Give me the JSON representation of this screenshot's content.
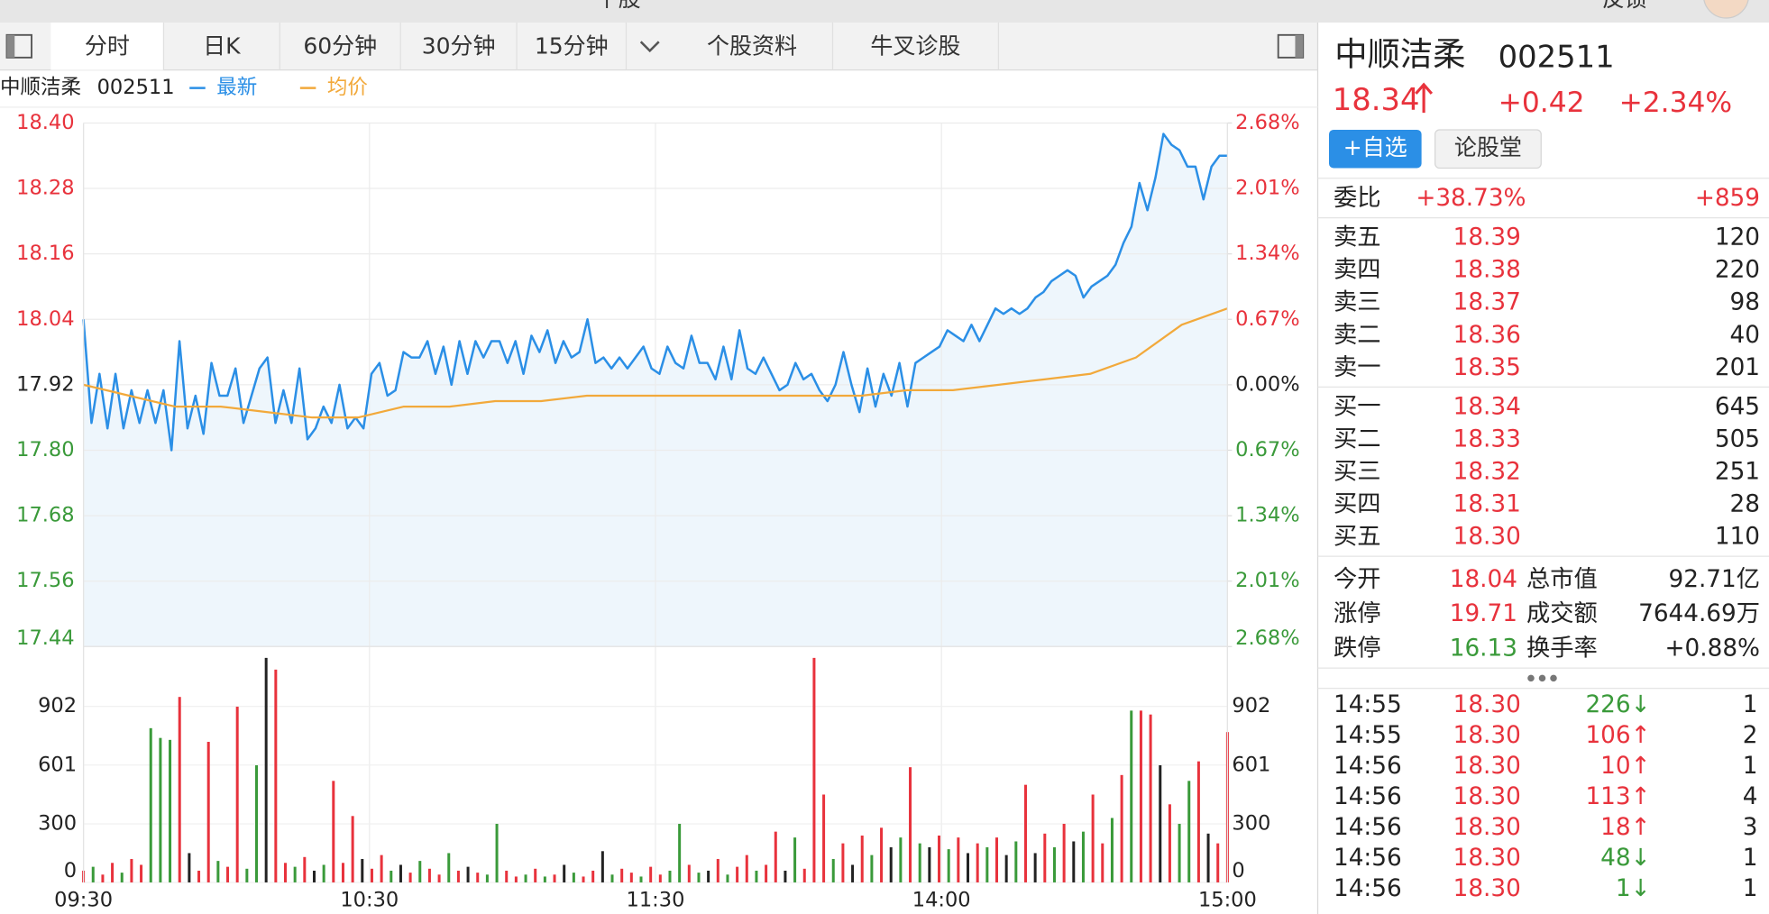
{
  "header": {
    "title": "个股",
    "feedback": "反馈"
  },
  "tabs": [
    "分时",
    "日K",
    "60分钟",
    "30分钟",
    "15分钟",
    "个股资料",
    "牛叉诊股"
  ],
  "chart_data": [
    {
      "type": "line",
      "title": "中顺洁柔",
      "subtitle": "002511",
      "up_color": "#e8323c",
      "down_color": "#3a9a3a",
      "neutral_color": "#222222",
      "grid": true,
      "ylim": [
        17.44,
        18.4
      ],
      "yticks": [
        {
          "value": 18.4,
          "label": "18.40"
        },
        18.28,
        18.16,
        18.04,
        17.92,
        {
          "value": 17.8,
          "label": "17.80"
        },
        17.68,
        17.56,
        17.44
      ],
      "y2lim": [
        -2.68,
        2.68
      ],
      "y2ticks": [
        {
          "value": 2.68,
          "label": "2.68%"
        },
        {
          "value": 2.01,
          "label": "2.01%"
        },
        {
          "value": 1.34,
          "label": "1.34%"
        },
        {
          "value": 0.67,
          "label": "0.67%"
        },
        {
          "value": 0,
          "label": "0.00%"
        },
        {
          "value": -0.67,
          "label": "0.67%"
        },
        {
          "value": -1.34,
          "label": "1.34%"
        },
        {
          "value": -2.01,
          "label": "2.01%"
        },
        {
          "value": -2.68,
          "label": "2.68%"
        }
      ],
      "series": [
        {
          "name": "最新",
          "color": "#2b8fe6",
          "fill": "#eef6fc",
          "values": [
            18.04,
            17.85,
            17.94,
            17.84,
            17.94,
            17.84,
            17.91,
            17.85,
            17.91,
            17.85,
            17.91,
            17.8,
            18.0,
            17.84,
            17.9,
            17.83,
            17.96,
            17.9,
            17.9,
            17.95,
            17.85,
            17.9,
            17.95,
            17.97,
            17.85,
            17.91,
            17.85,
            17.95,
            17.82,
            17.84,
            17.88,
            17.85,
            17.92,
            17.84,
            17.86,
            17.84,
            17.94,
            17.96,
            17.9,
            17.91,
            17.98,
            17.97,
            17.97,
            18.0,
            17.94,
            17.99,
            17.92,
            18.0,
            17.94,
            18.0,
            17.97,
            18.0,
            18.0,
            17.96,
            18.0,
            17.94,
            18.01,
            17.98,
            18.02,
            17.96,
            18.0,
            17.97,
            17.98,
            18.04,
            17.96,
            17.97,
            17.95,
            17.97,
            17.95,
            17.97,
            17.99,
            17.95,
            17.94,
            17.99,
            17.96,
            17.95,
            18.01,
            17.96,
            17.96,
            17.93,
            17.99,
            17.93,
            18.02,
            17.95,
            17.94,
            17.97,
            17.94,
            17.91,
            17.92,
            17.96,
            17.93,
            17.94,
            17.91,
            17.89,
            17.92,
            17.98,
            17.92,
            17.87,
            17.95,
            17.88,
            17.94,
            17.9,
            17.96,
            17.88,
            17.96,
            17.97,
            17.98,
            17.99,
            18.02,
            18.01,
            18.0,
            18.03,
            18.0,
            18.03,
            18.06,
            18.05,
            18.06,
            18.05,
            18.06,
            18.08,
            18.09,
            18.11,
            18.12,
            18.13,
            18.12,
            18.08,
            18.1,
            18.11,
            18.12,
            18.14,
            18.18,
            18.21,
            18.29,
            18.24,
            18.3,
            18.38,
            18.36,
            18.35,
            18.32,
            18.32,
            18.26,
            18.32,
            18.34,
            18.34
          ]
        },
        {
          "name": "均价",
          "color": "#f2a93b",
          "values": [
            17.92,
            17.9,
            17.88,
            17.88,
            17.87,
            17.86,
            17.86,
            17.88,
            17.88,
            17.89,
            17.89,
            17.9,
            17.9,
            17.9,
            17.9,
            17.9,
            17.9,
            17.9,
            17.91,
            17.91,
            17.92,
            17.93,
            17.94,
            17.97,
            18.03,
            18.06
          ]
        }
      ]
    },
    {
      "type": "bar",
      "ylim": [
        0,
        1208
      ],
      "yticks": [
        0,
        300,
        601,
        902
      ],
      "x_labels": [
        "09:30",
        "10:30",
        "11:30",
        "14:00",
        "15:00"
      ],
      "values": [
        60,
        80,
        40,
        100,
        50,
        120,
        90,
        790,
        740,
        730,
        950,
        150,
        60,
        720,
        110,
        80,
        900,
        70,
        600,
        1150,
        1090,
        100,
        80,
        130,
        60,
        90,
        520,
        100,
        340,
        120,
        70,
        140,
        60,
        90,
        50,
        110,
        70,
        40,
        150,
        60,
        80,
        50,
        40,
        300,
        60,
        30,
        40,
        70,
        30,
        40,
        90,
        50,
        30,
        60,
        160,
        40,
        70,
        50,
        30,
        80,
        40,
        60,
        300,
        90,
        50,
        60,
        120,
        40,
        80,
        140,
        60,
        90,
        260,
        60,
        230,
        70,
        1150,
        450,
        120,
        200,
        90,
        240,
        140,
        280,
        180,
        230,
        590,
        200,
        180,
        240,
        170,
        230,
        150,
        200,
        180,
        230,
        140,
        210,
        500,
        150,
        250,
        180,
        300,
        210,
        260,
        450,
        200,
        330,
        550,
        880,
        880,
        860,
        600,
        400,
        300,
        520,
        620,
        250,
        200,
        770
      ],
      "colors": [
        "#e8323c",
        "#3a9a3a",
        "#e8323c",
        "#e8323c",
        "#3a9a3a",
        "#e8323c",
        "#e8323c",
        "#3a9a3a",
        "#3a9a3a",
        "#3a9a3a",
        "#e8323c",
        "#222222",
        "#e8323c",
        "#e8323c",
        "#3a9a3a",
        "#e8323c",
        "#e8323c",
        "#3a9a3a",
        "#3a9a3a",
        "#222222",
        "#e8323c",
        "#e8323c",
        "#3a9a3a",
        "#e8323c",
        "#222222",
        "#3a9a3a",
        "#e8323c",
        "#e8323c",
        "#e8323c",
        "#222222",
        "#e8323c",
        "#e8323c",
        "#3a9a3a",
        "#222222",
        "#e8323c",
        "#3a9a3a",
        "#e8323c",
        "#e8323c",
        "#3a9a3a",
        "#e8323c",
        "#222222",
        "#e8323c",
        "#3a9a3a",
        "#3a9a3a",
        "#e8323c",
        "#e8323c",
        "#3a9a3a",
        "#e8323c",
        "#3a9a3a",
        "#e8323c",
        "#222222",
        "#3a9a3a",
        "#e8323c",
        "#e8323c",
        "#222222",
        "#3a9a3a",
        "#e8323c",
        "#e8323c",
        "#3a9a3a",
        "#e8323c",
        "#e8323c",
        "#3a9a3a",
        "#3a9a3a",
        "#e8323c",
        "#3a9a3a",
        "#222222",
        "#e8323c",
        "#3a9a3a",
        "#e8323c",
        "#e8323c",
        "#3a9a3a",
        "#e8323c",
        "#e8323c",
        "#222222",
        "#3a9a3a",
        "#e8323c",
        "#e8323c",
        "#e8323c",
        "#3a9a3a",
        "#e8323c",
        "#222222",
        "#e8323c",
        "#3a9a3a",
        "#e8323c",
        "#222222",
        "#3a9a3a",
        "#e8323c",
        "#3a9a3a",
        "#222222",
        "#e8323c",
        "#3a9a3a",
        "#e8323c",
        "#222222",
        "#e8323c",
        "#3a9a3a",
        "#e8323c",
        "#222222",
        "#3a9a3a",
        "#e8323c",
        "#222222",
        "#e8323c",
        "#3a9a3a",
        "#e8323c",
        "#222222",
        "#3a9a3a",
        "#e8323c",
        "#e8323c",
        "#3a9a3a",
        "#e8323c",
        "#3a9a3a",
        "#e8323c",
        "#e8323c",
        "#222222",
        "#e8323c",
        "#3a9a3a",
        "#3a9a3a",
        "#e8323c",
        "#222222",
        "#e8323c",
        "#e8323c"
      ]
    }
  ],
  "quote": {
    "name": "中顺洁柔",
    "code": "002511",
    "price": "18.34",
    "change": "+0.42",
    "change_pct": "+2.34%",
    "add_button": "+自选",
    "forum_button": "论股堂"
  },
  "order_book": {
    "ratio_label": "委比",
    "ratio": "+38.73%",
    "diff": "+859",
    "asks": [
      [
        "卖五",
        "18.39",
        "120"
      ],
      [
        "卖四",
        "18.38",
        "220"
      ],
      [
        "卖三",
        "18.37",
        "98"
      ],
      [
        "卖二",
        "18.36",
        "40"
      ],
      [
        "卖一",
        "18.35",
        "201"
      ]
    ],
    "bids": [
      [
        "买一",
        "18.34",
        "645"
      ],
      [
        "买二",
        "18.33",
        "505"
      ],
      [
        "买三",
        "18.32",
        "251"
      ],
      [
        "买四",
        "18.31",
        "28"
      ],
      [
        "买五",
        "18.30",
        "110"
      ]
    ]
  },
  "stats": [
    {
      "label": "今开",
      "value": "18.04",
      "color": "#e8323c",
      "label2": "总市值",
      "value2": "92.71亿"
    },
    {
      "label": "涨停",
      "value": "19.71",
      "color": "#e8323c",
      "label2": "成交额",
      "value2": "7644.69万"
    },
    {
      "label": "跌停",
      "value": "16.13",
      "color": "#3a9a3a",
      "label2": "换手率",
      "value2": "+0.88%"
    }
  ],
  "trades": [
    {
      "time": "14:55",
      "price": "18.30",
      "volume": "226↓",
      "color": "#3a9a3a",
      "count": "1"
    },
    {
      "time": "14:55",
      "price": "18.30",
      "volume": "106↑",
      "color": "#e8323c",
      "count": "2"
    },
    {
      "time": "14:56",
      "price": "18.30",
      "volume": "10↑",
      "color": "#e8323c",
      "count": "1"
    },
    {
      "time": "14:56",
      "price": "18.30",
      "volume": "113↑",
      "color": "#e8323c",
      "count": "4"
    },
    {
      "time": "14:56",
      "price": "18.30",
      "volume": "18↑",
      "color": "#e8323c",
      "count": "3"
    },
    {
      "time": "14:56",
      "price": "18.30",
      "volume": "48↓",
      "color": "#3a9a3a",
      "count": "1"
    },
    {
      "time": "14:56",
      "price": "18.30",
      "volume": "1↓",
      "color": "#3a9a3a",
      "count": "1"
    }
  ]
}
